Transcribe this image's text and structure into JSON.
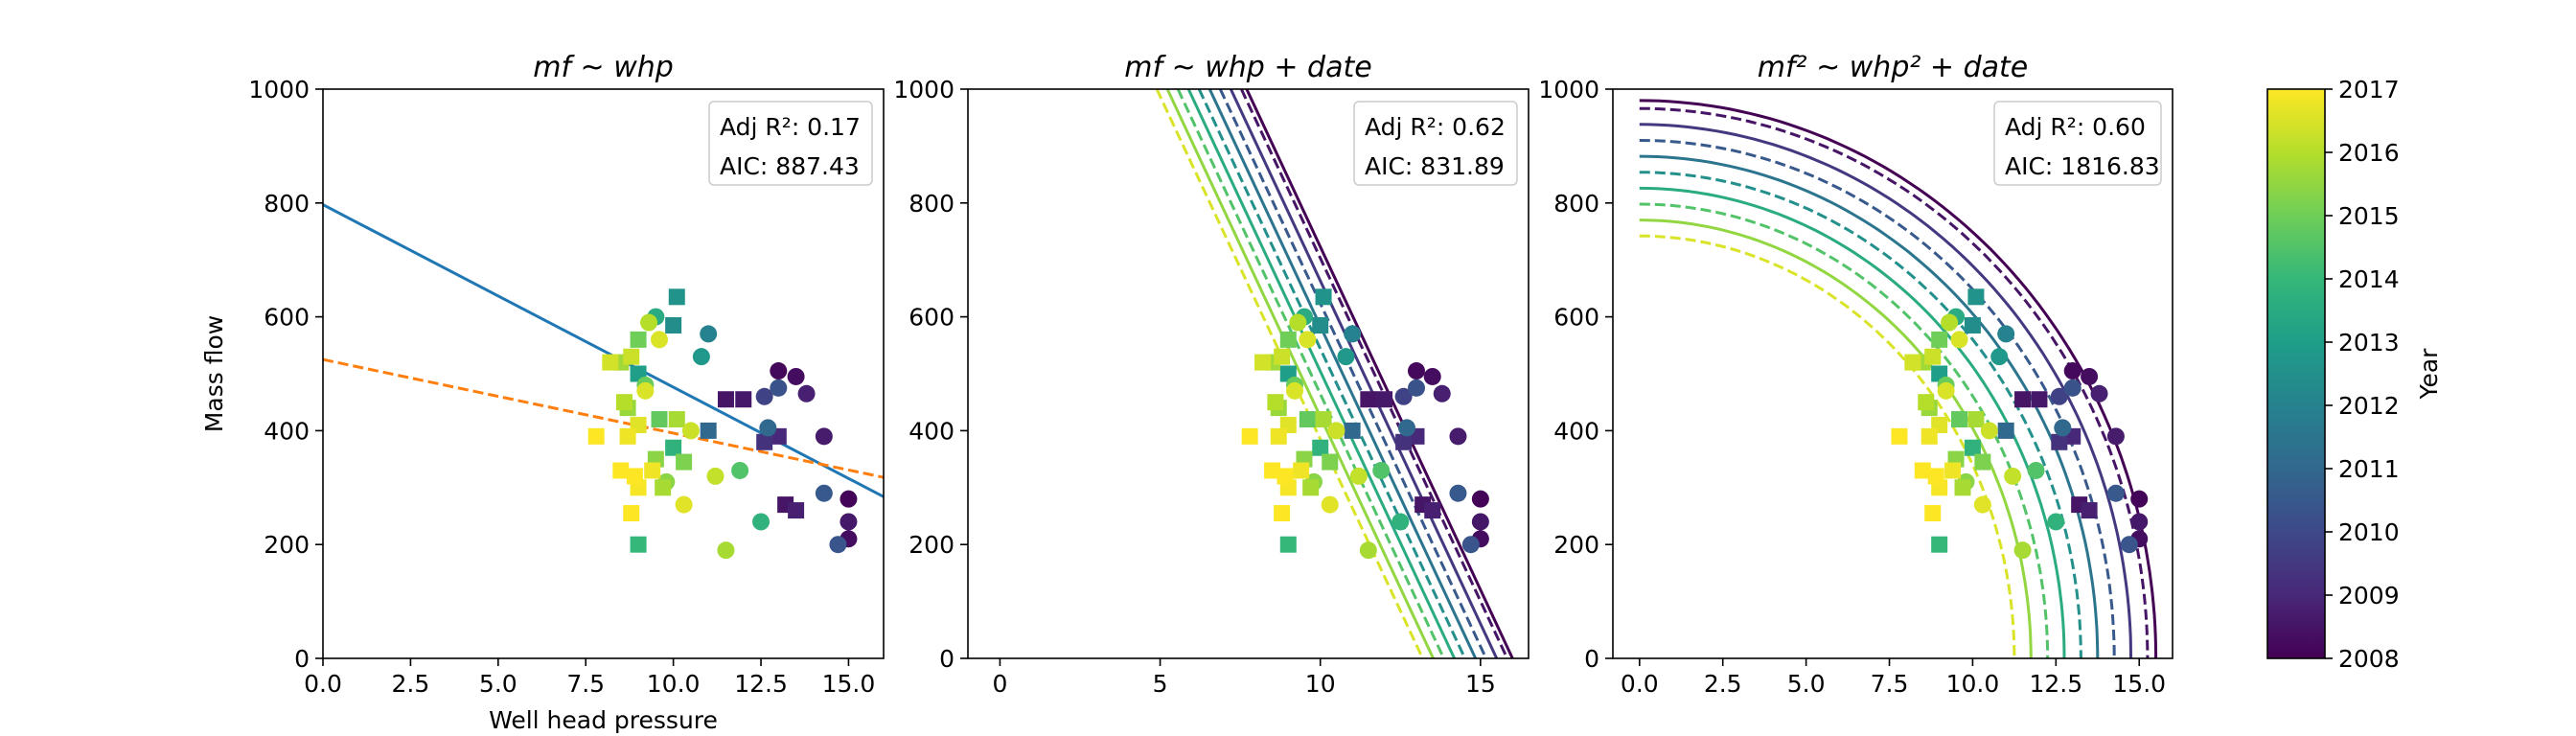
{
  "chart_data": [
    {
      "type": "scatter",
      "title": "mf ~ whp",
      "xlabel": "Well head pressure",
      "ylabel": "Mass flow",
      "xlim": [
        0,
        16
      ],
      "ylim": [
        0,
        1000
      ],
      "xticks": [
        "0.0",
        "2.5",
        "5.0",
        "7.5",
        "10.0",
        "12.5",
        "15.0"
      ],
      "yticks": [
        "0",
        "200",
        "400",
        "600",
        "800",
        "1000"
      ],
      "grid": false,
      "stats": {
        "r2_label": "Adj R²: 0.17",
        "aic_label": "AIC: 887.43"
      },
      "fits": [
        {
          "style": "solid",
          "color": "#1f77b4",
          "x": [
            0,
            16
          ],
          "y": [
            797,
            284
          ]
        },
        {
          "style": "dashed",
          "color": "#ff7f0e",
          "x": [
            0,
            16
          ],
          "y": [
            525,
            318
          ]
        }
      ]
    },
    {
      "type": "scatter",
      "title": "mf ~ whp + date",
      "xlabel": "",
      "ylabel": "",
      "xlim": [
        -1,
        16.5
      ],
      "ylim": [
        0,
        1000
      ],
      "xticks": [
        "0",
        "5",
        "10",
        "15"
      ],
      "yticks": [
        "0",
        "200",
        "400",
        "600",
        "800",
        "1000"
      ],
      "grid": false,
      "stats": {
        "r2_label": "Adj R²: 0.62",
        "aic_label": "AIC: 831.89"
      },
      "fit_model": {
        "kind": "parallel_lines",
        "slope_per_unit": -120.5,
        "x_at_zero_2008": 16.0,
        "x_shift_per_year": -0.33
      }
    },
    {
      "type": "scatter",
      "title": "mf² ~ whp² + date",
      "xlabel": "",
      "ylabel": "",
      "xlim": [
        -0.8,
        16
      ],
      "ylim": [
        0,
        1000
      ],
      "xticks": [
        "0.0",
        "2.5",
        "5.0",
        "7.5",
        "10.0",
        "12.5",
        "15.0"
      ],
      "yticks": [
        "0",
        "200",
        "400",
        "600",
        "800",
        "1000"
      ],
      "grid": false,
      "stats": {
        "r2_label": "Adj R²: 0.60",
        "aic_label": "AIC: 1816.83"
      },
      "fit_model": {
        "kind": "ellipses",
        "whp_max_2008": 15.5,
        "whp_shift_per_year": -0.5,
        "mf_max_2008": 980,
        "mf_shift_per_year": -28
      }
    }
  ],
  "fit_curves": [
    {
      "year": 2008.0,
      "style": "solid"
    },
    {
      "year": 2008.5,
      "style": "dashed"
    },
    {
      "year": 2009.5,
      "style": "solid"
    },
    {
      "year": 2010.5,
      "style": "dashed"
    },
    {
      "year": 2011.5,
      "style": "solid"
    },
    {
      "year": 2012.5,
      "style": "dashed"
    },
    {
      "year": 2013.5,
      "style": "solid"
    },
    {
      "year": 2014.5,
      "style": "dashed"
    },
    {
      "year": 2015.5,
      "style": "solid"
    },
    {
      "year": 2016.5,
      "style": "dashed"
    }
  ],
  "points": [
    {
      "whp": 13.0,
      "mf": 505,
      "year": 2008.2,
      "shape": "circle"
    },
    {
      "whp": 13.5,
      "mf": 495,
      "year": 2008.3,
      "shape": "circle"
    },
    {
      "whp": 12.0,
      "mf": 455,
      "year": 2008.6,
      "shape": "square"
    },
    {
      "whp": 11.5,
      "mf": 455,
      "year": 2008.5,
      "shape": "square"
    },
    {
      "whp": 13.8,
      "mf": 465,
      "year": 2008.8,
      "shape": "circle"
    },
    {
      "whp": 14.3,
      "mf": 390,
      "year": 2008.7,
      "shape": "circle"
    },
    {
      "whp": 15.0,
      "mf": 280,
      "year": 2008.1,
      "shape": "circle"
    },
    {
      "whp": 15.0,
      "mf": 240,
      "year": 2008.6,
      "shape": "circle"
    },
    {
      "whp": 15.0,
      "mf": 210,
      "year": 2008.3,
      "shape": "circle"
    },
    {
      "whp": 13.2,
      "mf": 270,
      "year": 2008.5,
      "shape": "square"
    },
    {
      "whp": 13.5,
      "mf": 260,
      "year": 2008.8,
      "shape": "square"
    },
    {
      "whp": 13.0,
      "mf": 390,
      "year": 2009.0,
      "shape": "square"
    },
    {
      "whp": 12.6,
      "mf": 380,
      "year": 2009.3,
      "shape": "square"
    },
    {
      "whp": 12.6,
      "mf": 460,
      "year": 2009.8,
      "shape": "circle"
    },
    {
      "whp": 13.0,
      "mf": 475,
      "year": 2010.3,
      "shape": "circle"
    },
    {
      "whp": 14.7,
      "mf": 200,
      "year": 2010.4,
      "shape": "circle"
    },
    {
      "whp": 14.3,
      "mf": 290,
      "year": 2010.5,
      "shape": "circle"
    },
    {
      "whp": 12.7,
      "mf": 405,
      "year": 2011.0,
      "shape": "circle"
    },
    {
      "whp": 11.0,
      "mf": 400,
      "year": 2011.0,
      "shape": "square"
    },
    {
      "whp": 11.0,
      "mf": 570,
      "year": 2012.0,
      "shape": "circle"
    },
    {
      "whp": 10.0,
      "mf": 585,
      "year": 2012.4,
      "shape": "square"
    },
    {
      "whp": 10.1,
      "mf": 635,
      "year": 2012.6,
      "shape": "square"
    },
    {
      "whp": 10.8,
      "mf": 530,
      "year": 2012.8,
      "shape": "circle"
    },
    {
      "whp": 9.0,
      "mf": 500,
      "year": 2013.0,
      "shape": "square"
    },
    {
      "whp": 9.5,
      "mf": 600,
      "year": 2013.5,
      "shape": "circle"
    },
    {
      "whp": 12.5,
      "mf": 240,
      "year": 2013.8,
      "shape": "circle"
    },
    {
      "whp": 10.0,
      "mf": 370,
      "year": 2013.8,
      "shape": "square"
    },
    {
      "whp": 9.0,
      "mf": 200,
      "year": 2014.0,
      "shape": "square"
    },
    {
      "whp": 11.9,
      "mf": 330,
      "year": 2014.5,
      "shape": "circle"
    },
    {
      "whp": 9.2,
      "mf": 480,
      "year": 2014.9,
      "shape": "circle"
    },
    {
      "whp": 9.6,
      "mf": 420,
      "year": 2014.8,
      "shape": "square"
    },
    {
      "whp": 9.0,
      "mf": 560,
      "year": 2015.0,
      "shape": "square"
    },
    {
      "whp": 10.3,
      "mf": 345,
      "year": 2015.2,
      "shape": "square"
    },
    {
      "whp": 9.8,
      "mf": 310,
      "year": 2015.4,
      "shape": "circle"
    },
    {
      "whp": 9.5,
      "mf": 350,
      "year": 2015.4,
      "shape": "square"
    },
    {
      "whp": 8.7,
      "mf": 440,
      "year": 2015.6,
      "shape": "square"
    },
    {
      "whp": 8.5,
      "mf": 520,
      "year": 2015.7,
      "shape": "square"
    },
    {
      "whp": 10.1,
      "mf": 420,
      "year": 2015.8,
      "shape": "square"
    },
    {
      "whp": 11.5,
      "mf": 190,
      "year": 2015.8,
      "shape": "circle"
    },
    {
      "whp": 9.7,
      "mf": 300,
      "year": 2015.8,
      "shape": "square"
    },
    {
      "whp": 9.3,
      "mf": 590,
      "year": 2016.0,
      "shape": "circle"
    },
    {
      "whp": 8.6,
      "mf": 450,
      "year": 2016.0,
      "shape": "square"
    },
    {
      "whp": 11.2,
      "mf": 320,
      "year": 2016.2,
      "shape": "circle"
    },
    {
      "whp": 10.5,
      "mf": 400,
      "year": 2016.3,
      "shape": "circle"
    },
    {
      "whp": 8.8,
      "mf": 530,
      "year": 2016.3,
      "shape": "square"
    },
    {
      "whp": 9.6,
      "mf": 560,
      "year": 2016.5,
      "shape": "circle"
    },
    {
      "whp": 9.2,
      "mf": 470,
      "year": 2016.5,
      "shape": "circle"
    },
    {
      "whp": 8.2,
      "mf": 520,
      "year": 2016.4,
      "shape": "square"
    },
    {
      "whp": 9.0,
      "mf": 410,
      "year": 2016.6,
      "shape": "square"
    },
    {
      "whp": 10.3,
      "mf": 270,
      "year": 2016.6,
      "shape": "circle"
    },
    {
      "whp": 8.7,
      "mf": 390,
      "year": 2016.8,
      "shape": "square"
    },
    {
      "whp": 9.4,
      "mf": 330,
      "year": 2016.8,
      "shape": "square"
    },
    {
      "whp": 9.0,
      "mf": 300,
      "year": 2016.9,
      "shape": "square"
    },
    {
      "whp": 8.5,
      "mf": 330,
      "year": 2017.0,
      "shape": "square"
    },
    {
      "whp": 8.9,
      "mf": 320,
      "year": 2017.0,
      "shape": "square"
    },
    {
      "whp": 8.8,
      "mf": 255,
      "year": 2017.0,
      "shape": "square"
    },
    {
      "whp": 7.8,
      "mf": 390,
      "year": 2017.0,
      "shape": "square"
    }
  ],
  "colorbar": {
    "label": "Year",
    "ticks": [
      "2008",
      "2009",
      "2010",
      "2011",
      "2012",
      "2013",
      "2014",
      "2015",
      "2016",
      "2017"
    ],
    "range": [
      2008,
      2017
    ],
    "colormap": [
      "#440154",
      "#482878",
      "#3e4989",
      "#31688e",
      "#26828e",
      "#1f9e89",
      "#35b779",
      "#6ece58",
      "#b5de2b",
      "#fde725"
    ]
  }
}
